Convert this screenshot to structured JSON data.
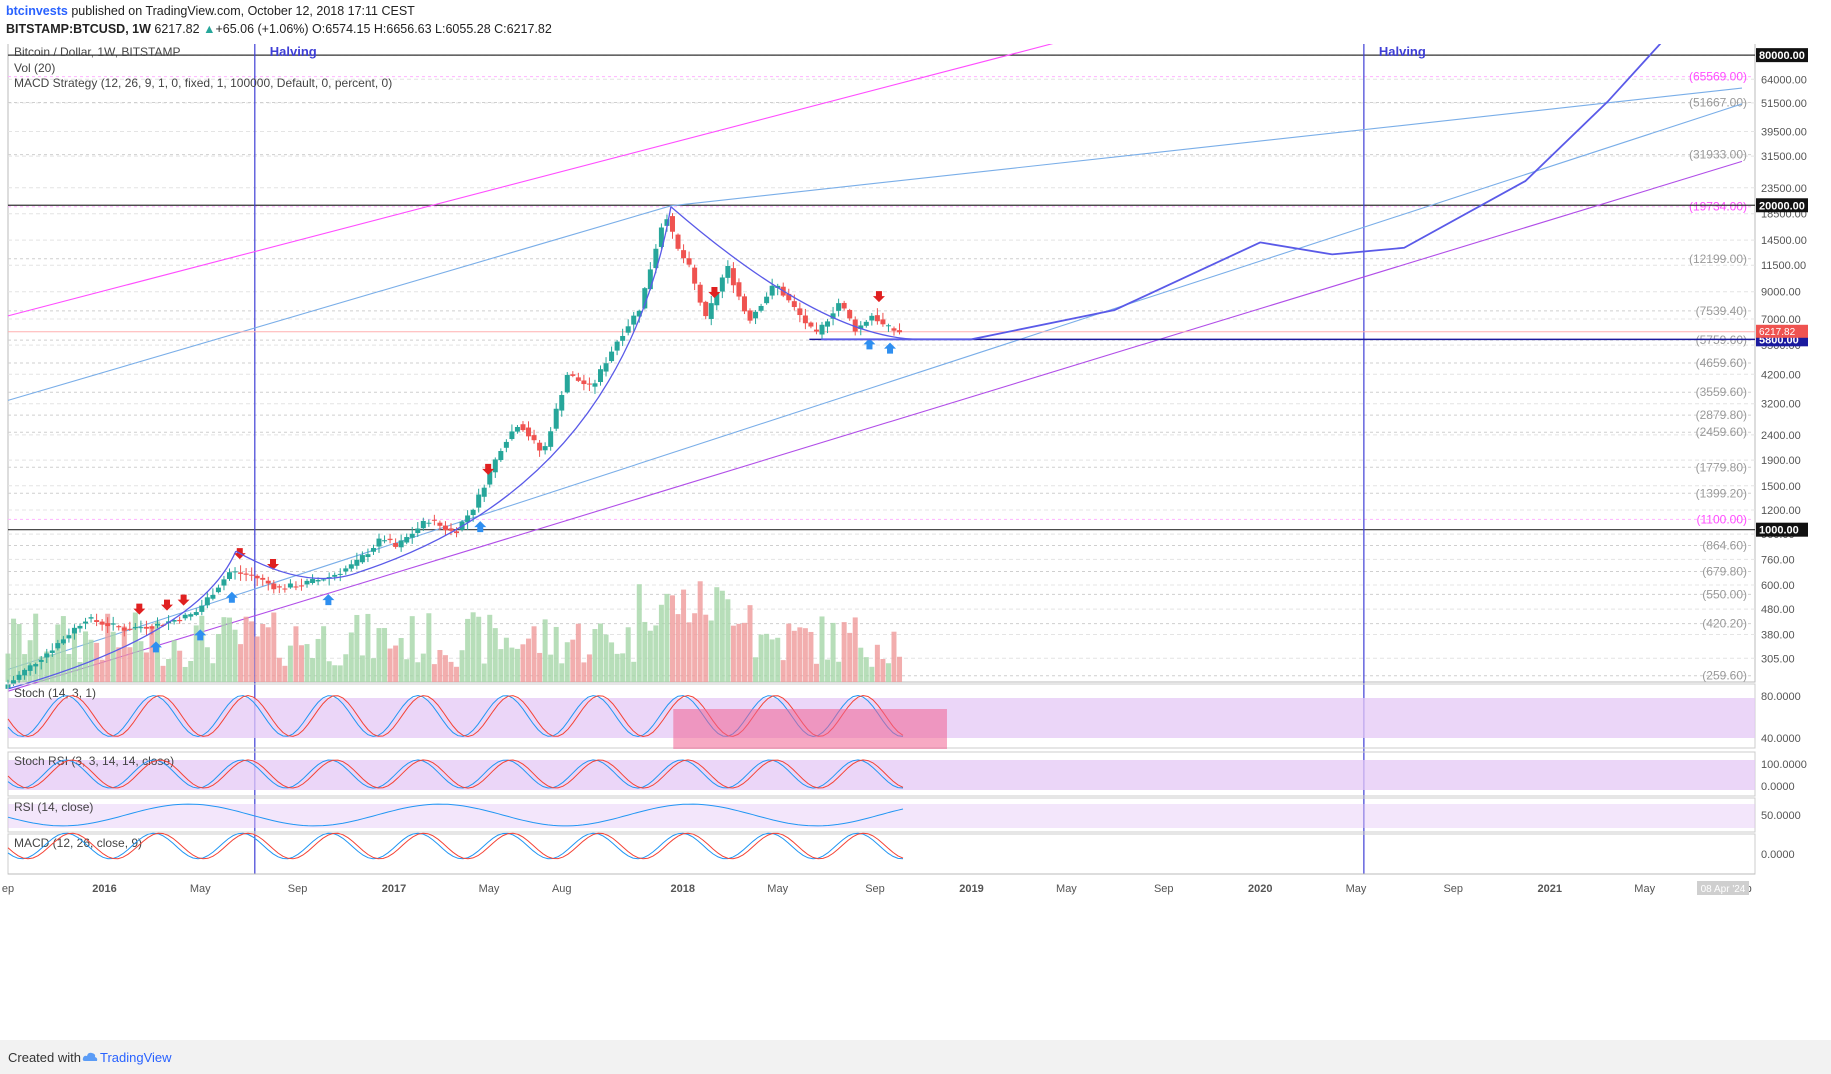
{
  "header": {
    "publisher": "btcinvests",
    "published_text": " published on TradingView.com, October 12, 2018 17:11 CEST",
    "symbol": "BITSTAMP:BTCUSD, 1W",
    "last_price": "6217.82",
    "change_text": "+65.06 (+1.06%)",
    "ohlc": "O:6574.15 H:6656.63 L:6055.28 C:6217.82"
  },
  "footer": {
    "created_with": "Created with",
    "brand": "TradingView"
  },
  "colors": {
    "up": "#26a69a",
    "down": "#ef5350",
    "volume_up": "#a5d6a7",
    "volume_down": "#ef9a9a",
    "trend_pink": "#ff4dff",
    "trend_blue": "#7aaee8",
    "trend_purple": "#b14ee8",
    "curve": "#5a5ae8",
    "halving": "#3f3fd6",
    "osc_band": "#e4c8f6",
    "stoch_box": "#f06292"
  },
  "chart_data": {
    "type": "candlestick",
    "title": "Bitcoin / Dollar, 1W, BITSTAMP",
    "subtitle_lines": [
      "Vol (20)",
      "MACD Strategy (12, 26, 9, 1, 0, fixed, 1, 100000, Default, 0, percent, 0)"
    ],
    "y_scale": "log",
    "ylim": [
      245,
      92000
    ],
    "x_labels": [
      "ep",
      "2016",
      "May",
      "Sep",
      "2017",
      "May",
      "Aug",
      "2018",
      "May",
      "Sep",
      "2019",
      "May",
      "Sep",
      "2020",
      "May",
      "Sep",
      "2021",
      "May",
      "Sep"
    ],
    "x_label_dates": [
      "2015-09-01",
      "2016-01-01",
      "2016-05-01",
      "2016-09-01",
      "2017-01-01",
      "2017-05-01",
      "2017-08-01",
      "2018-01-01",
      "2018-05-01",
      "2018-09-01",
      "2019-01-01",
      "2019-05-01",
      "2019-09-01",
      "2020-01-01",
      "2020-05-01",
      "2020-09-01",
      "2021-01-01",
      "2021-05-01",
      "2021-09-01"
    ],
    "y_ticks": [
      80000,
      64000,
      51500,
      39500,
      31500,
      23500,
      18500,
      14500,
      11500,
      9000,
      7000,
      5500,
      4200,
      3200,
      2400,
      1900,
      1500,
      1200,
      960,
      760,
      600,
      480,
      380,
      305
    ],
    "fib_levels": [
      {
        "label": "(65569.00)",
        "value": 65569,
        "color": "#ff4dff"
      },
      {
        "label": "(51667.00)",
        "value": 51667,
        "color": "#888888"
      },
      {
        "label": "(31933.00)",
        "value": 31933,
        "color": "#888888"
      },
      {
        "label": "(19734.00)",
        "value": 19734,
        "color": "#ff4dff"
      },
      {
        "label": "(12199.00)",
        "value": 12199,
        "color": "#888888"
      },
      {
        "label": "(7539.40)",
        "value": 7539.4,
        "color": "#888888"
      },
      {
        "label": "(5759.60)",
        "value": 5759.6,
        "color": "#888888"
      },
      {
        "label": "(4659.60)",
        "value": 4659.6,
        "color": "#888888"
      },
      {
        "label": "(3559.60)",
        "value": 3559.6,
        "color": "#888888"
      },
      {
        "label": "(2879.80)",
        "value": 2879.8,
        "color": "#888888"
      },
      {
        "label": "(2459.60)",
        "value": 2459.6,
        "color": "#888888"
      },
      {
        "label": "(1779.80)",
        "value": 1779.8,
        "color": "#888888"
      },
      {
        "label": "(1399.20)",
        "value": 1399.2,
        "color": "#888888"
      },
      {
        "label": "(1100.00)",
        "value": 1100,
        "color": "#ff4dff"
      },
      {
        "label": "(864.60)",
        "value": 864.6,
        "color": "#888888"
      },
      {
        "label": "(679.80)",
        "value": 679.8,
        "color": "#888888"
      },
      {
        "label": "(550.00)",
        "value": 550,
        "color": "#888888"
      },
      {
        "label": "(420.20)",
        "value": 420.2,
        "color": "#888888"
      },
      {
        "label": "(259.60)",
        "value": 259.6,
        "color": "#888888"
      }
    ],
    "horizontal_levels": [
      {
        "label": "80000.00",
        "value": 80000
      },
      {
        "label": "20000.00",
        "value": 20000
      },
      {
        "label": "1000.00",
        "value": 1000
      }
    ],
    "support_level": {
      "label": "5800.00",
      "value": 5800,
      "from": "2018-06-10"
    },
    "price_tag": {
      "label": "6217.82",
      "value": 6217.82
    },
    "halvings": [
      {
        "label": "Halving",
        "date": "2016-07-09"
      },
      {
        "label": "Halving",
        "date": "2020-05-11"
      }
    ],
    "price_path": [
      [
        "2015-09-01",
        230
      ],
      [
        "2015-11-01",
        330
      ],
      [
        "2015-12-15",
        440
      ],
      [
        "2016-02-01",
        400
      ],
      [
        "2016-03-15",
        415
      ],
      [
        "2016-05-01",
        460
      ],
      [
        "2016-06-15",
        680
      ],
      [
        "2016-07-15",
        650
      ],
      [
        "2016-08-15",
        580
      ],
      [
        "2016-09-15",
        605
      ],
      [
        "2016-10-20",
        650
      ],
      [
        "2016-11-20",
        730
      ],
      [
        "2016-12-25",
        930
      ],
      [
        "2017-01-10",
        850
      ],
      [
        "2017-02-20",
        1100
      ],
      [
        "2017-03-25",
        970
      ],
      [
        "2017-04-20",
        1250
      ],
      [
        "2017-05-25",
        2200
      ],
      [
        "2017-06-15",
        2700
      ],
      [
        "2017-07-15",
        2000
      ],
      [
        "2017-08-15",
        4200
      ],
      [
        "2017-09-15",
        3700
      ],
      [
        "2017-10-15",
        5600
      ],
      [
        "2017-11-15",
        7800
      ],
      [
        "2017-12-17",
        19000
      ],
      [
        "2017-12-31",
        13500
      ],
      [
        "2018-01-15",
        11500
      ],
      [
        "2018-02-06",
        7000
      ],
      [
        "2018-03-05",
        11400
      ],
      [
        "2018-04-01",
        6900
      ],
      [
        "2018-05-05",
        9700
      ],
      [
        "2018-06-01",
        7500
      ],
      [
        "2018-06-25",
        6000
      ],
      [
        "2018-07-25",
        8200
      ],
      [
        "2018-08-15",
        6300
      ],
      [
        "2018-09-05",
        7300
      ],
      [
        "2018-09-20",
        6500
      ],
      [
        "2018-10-08",
        6217.82
      ]
    ],
    "sell_signals": [
      "2016-02-14",
      "2016-03-20",
      "2016-04-10",
      "2016-06-20",
      "2016-08-01",
      "2017-04-30",
      "2018-02-10",
      "2018-09-06"
    ],
    "buy_signals": [
      "2016-03-06",
      "2016-05-01",
      "2016-06-10",
      "2016-10-10",
      "2017-04-20",
      "2018-08-25",
      "2018-09-20"
    ],
    "projection_path": [
      [
        "2018-06-25",
        5800
      ],
      [
        "2019-01-01",
        5800
      ],
      [
        "2019-07-01",
        7600
      ],
      [
        "2020-01-01",
        14200
      ],
      [
        "2020-04-01",
        12700
      ],
      [
        "2020-07-01",
        13500
      ],
      [
        "2020-12-01",
        25000
      ],
      [
        "2021-03-15",
        52000
      ],
      [
        "2021-05-25",
        92000
      ]
    ],
    "trendlines": [
      {
        "name": "pink",
        "points": [
          [
            "2015-09-01",
            7200
          ],
          [
            "2019-05-01",
            92000
          ]
        ]
      },
      {
        "name": "blue_upper",
        "points": [
          [
            "2015-09-01",
            3300
          ],
          [
            "2017-12-17",
            19900
          ],
          [
            "2021-09-01",
            59000
          ]
        ]
      },
      {
        "name": "blue_lower",
        "points": [
          [
            "2015-09-01",
            275
          ],
          [
            "2021-09-01",
            51000
          ]
        ]
      },
      {
        "name": "purple",
        "points": [
          [
            "2015-09-01",
            225
          ],
          [
            "2021-09-01",
            30000
          ]
        ]
      }
    ],
    "volume_note": "Vol (20)",
    "oscillators": [
      {
        "label": "Stoch (14, 3, 1)",
        "ticks": [
          "80.0000",
          "40.0000"
        ],
        "band": [
          20,
          80
        ]
      },
      {
        "label": "Stoch RSI (3, 3, 14, 14, close)",
        "ticks": [
          "100.0000",
          "0.0000"
        ],
        "band": [
          20,
          80
        ]
      },
      {
        "label": "RSI (14, close)",
        "ticks": [
          "50.0000"
        ],
        "band": [
          30,
          70
        ]
      },
      {
        "label": "MACD (12, 26, close, 9)",
        "ticks": [
          "0.0000"
        ]
      }
    ],
    "date_tag": "08 Apr '24"
  }
}
